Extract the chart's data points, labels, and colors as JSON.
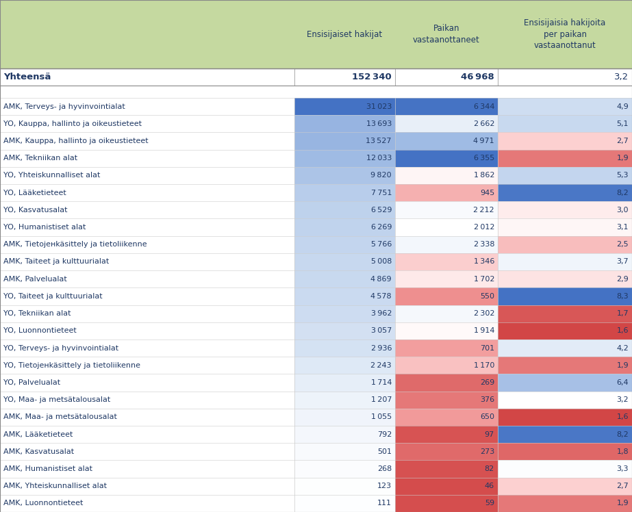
{
  "header_bg": "#c5d9a0",
  "col_headers": [
    "Ensisijaiset hakijat",
    "Paikan\nvastaanottaneet",
    "Ensisijaisia hakijoita\nper paikan\nvastaanottanut"
  ],
  "total_label": "Yhteensä",
  "total_v1": "152 340",
  "total_v2": "46 968",
  "total_ratio": "3,2",
  "rows": [
    {
      "label": "AMK, Terveys- ja hyvinvointialat",
      "v1": 31023,
      "v2": 6344,
      "ratio": 4.9
    },
    {
      "label": "YO, Kauppa, hallinto ja oikeustieteet",
      "v1": 13693,
      "v2": 2662,
      "ratio": 5.1
    },
    {
      "label": "AMK, Kauppa, hallinto ja oikeustieteet",
      "v1": 13527,
      "v2": 4971,
      "ratio": 2.7
    },
    {
      "label": "AMK, Tekniikan alat",
      "v1": 12033,
      "v2": 6355,
      "ratio": 1.9
    },
    {
      "label": "YO, Yhteiskunnalliset alat",
      "v1": 9820,
      "v2": 1862,
      "ratio": 5.3
    },
    {
      "label": "YO, Lääketieteet",
      "v1": 7751,
      "v2": 945,
      "ratio": 8.2
    },
    {
      "label": "YO, Kasvatusalat",
      "v1": 6529,
      "v2": 2212,
      "ratio": 3.0
    },
    {
      "label": "YO, Humanistiset alat",
      "v1": 6269,
      "v2": 2012,
      "ratio": 3.1
    },
    {
      "label": "AMK, Tietojенkäsittely ja tietoliikenne",
      "v1": 5766,
      "v2": 2338,
      "ratio": 2.5
    },
    {
      "label": "AMK, Taiteet ja kulttuurialat",
      "v1": 5008,
      "v2": 1346,
      "ratio": 3.7
    },
    {
      "label": "AMK, Palvelualat",
      "v1": 4869,
      "v2": 1702,
      "ratio": 2.9
    },
    {
      "label": "YO, Taiteet ja kulttuurialat",
      "v1": 4578,
      "v2": 550,
      "ratio": 8.3
    },
    {
      "label": "YO, Tekniikan alat",
      "v1": 3962,
      "v2": 2302,
      "ratio": 1.7
    },
    {
      "label": "YO, Luonnontieteet",
      "v1": 3057,
      "v2": 1914,
      "ratio": 1.6
    },
    {
      "label": "YO, Terveys- ja hyvinvointialat",
      "v1": 2936,
      "v2": 701,
      "ratio": 4.2
    },
    {
      "label": "YO, Tietojенkäsittely ja tietoliikenne",
      "v1": 2243,
      "v2": 1170,
      "ratio": 1.9
    },
    {
      "label": "YO, Palvelualat",
      "v1": 1714,
      "v2": 269,
      "ratio": 6.4
    },
    {
      "label": "YO, Maa- ja metsätalousalat",
      "v1": 1207,
      "v2": 376,
      "ratio": 3.2
    },
    {
      "label": "AMK, Maa- ja metsätalousalat",
      "v1": 1055,
      "v2": 650,
      "ratio": 1.6
    },
    {
      "label": "AMK, Lääketieteet",
      "v1": 792,
      "v2": 97,
      "ratio": 8.2
    },
    {
      "label": "AMK, Kasvatusalat",
      "v1": 501,
      "v2": 273,
      "ratio": 1.8
    },
    {
      "label": "AMK, Humanistiset alat",
      "v1": 268,
      "v2": 82,
      "ratio": 3.3
    },
    {
      "label": "AMK, Yhteiskunnalliset alat",
      "v1": 123,
      "v2": 46,
      "ratio": 2.7
    },
    {
      "label": "AMK, Luonnontieteet",
      "v1": 111,
      "v2": 59,
      "ratio": 1.9
    }
  ],
  "v1_max": 31023,
  "v2_max": 6355,
  "ratio_min": 1.6,
  "ratio_max": 8.3,
  "ratio_mid": 3.2
}
